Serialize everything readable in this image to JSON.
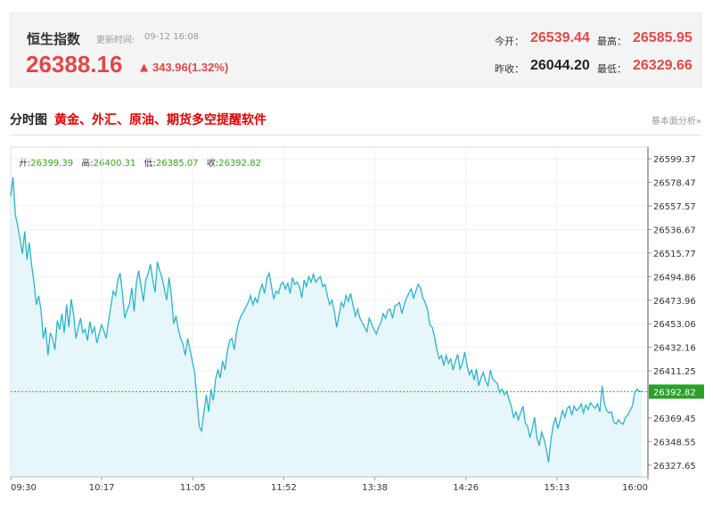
{
  "quote": {
    "name": "恒生指数",
    "update_label": "更新时间:",
    "update_time": "09-12 16:08",
    "price": "26388.16",
    "arrow_icon": "up-arrow",
    "change": "343.96(1.32%)",
    "open_label": "今开：",
    "open": "26539.44",
    "high_label": "最高：",
    "high": "26585.95",
    "prev_close_label": "昨收：",
    "prev_close": "26044.20",
    "low_label": "最低：",
    "low": "26329.66"
  },
  "section": {
    "title": "分时图",
    "link": "黄金、外汇、原油、期货多空提醒软件",
    "right_link": "基本面分析»"
  },
  "ohlc": {
    "open_label": "开:",
    "open": "26399.39",
    "high_label": "高:",
    "high": "26400.31",
    "low_label": "低:",
    "low": "26385.07",
    "close_label": "收:",
    "close": "26392.82"
  },
  "colors": {
    "line": "#2bb3c9",
    "fill": "#e6f6f9",
    "reference_line": "#3aa84a",
    "current_badge": "#2aa02a",
    "up": "#e04848"
  },
  "chart_data": {
    "type": "area",
    "ylim": [
      26317.2,
      26609.8
    ],
    "yticks": [
      "26599.37",
      "26578.47",
      "26557.57",
      "26536.67",
      "26515.77",
      "26494.86",
      "26473.96",
      "26453.06",
      "26432.16",
      "26411.25",
      "26369.45",
      "26348.55",
      "26327.65"
    ],
    "xticks": [
      "09:30",
      "10:17",
      "11:05",
      "11:52",
      "13:38",
      "14:26",
      "15:13",
      "16:00"
    ],
    "current_value": 26392.82,
    "current_label": "26392.82",
    "series": [
      {
        "values": [
          26566,
          26583,
          26550,
          26540,
          26528,
          26515,
          26535,
          26510,
          26525,
          26505,
          26490,
          26470,
          26478,
          26465,
          26440,
          26450,
          26425,
          26445,
          26440,
          26430,
          26456,
          26448,
          26462,
          26445,
          26470,
          26450,
          26475,
          26462,
          26440,
          26450,
          26458,
          26445,
          26448,
          26438,
          26455,
          26445,
          26450,
          26436,
          26444,
          26452,
          26447,
          26440,
          26455,
          26468,
          26482,
          26478,
          26492,
          26498,
          26480,
          26458,
          26465,
          26470,
          26485,
          26464,
          26490,
          26500,
          26486,
          26473,
          26492,
          26497,
          26506,
          26492,
          26481,
          26508,
          26500,
          26494,
          26484,
          26474,
          26494,
          26478,
          26453,
          26460,
          26448,
          26440,
          26435,
          26425,
          26440,
          26430,
          26420,
          26410,
          26385,
          26362,
          26358,
          26375,
          26390,
          26375,
          26395,
          26385,
          26404,
          26412,
          26405,
          26420,
          26412,
          26428,
          26438,
          26440,
          26430,
          26446,
          26455,
          26460,
          26464,
          26468,
          26472,
          26478,
          26470,
          26476,
          26472,
          26482,
          26488,
          26480,
          26493,
          26498,
          26486,
          26475,
          26482,
          26480,
          26488,
          26490,
          26484,
          26489,
          26480,
          26494,
          26488,
          26490,
          26486,
          26476,
          26492,
          26486,
          26495,
          26490,
          26497,
          26490,
          26493,
          26495,
          26486,
          26488,
          26478,
          26470,
          26474,
          26464,
          26450,
          26461,
          26472,
          26468,
          26478,
          26473,
          26480,
          26470,
          26460,
          26466,
          26458,
          26454,
          26450,
          26446,
          26458,
          26453,
          26448,
          26444,
          26450,
          26454,
          26462,
          26458,
          26465,
          26466,
          26458,
          26469,
          26470,
          26472,
          26462,
          26470,
          26476,
          26480,
          26484,
          26476,
          26482,
          26488,
          26485,
          26476,
          26472,
          26466,
          26452,
          26450,
          26442,
          26430,
          26422,
          26425,
          26416,
          26425,
          26418,
          26422,
          26412,
          26420,
          26426,
          26413,
          26418,
          26428,
          26416,
          26408,
          26412,
          26403,
          26413,
          26398,
          26405,
          26410,
          26402,
          26398,
          26412,
          26404,
          26402,
          26400,
          26392,
          26395,
          26390,
          26393,
          26386,
          26380,
          26370,
          26375,
          26368,
          26374,
          26380,
          26365,
          26362,
          26352,
          26360,
          26370,
          26352,
          26345,
          26357,
          26351,
          26342,
          26330,
          26350,
          26363,
          26370,
          26360,
          26368,
          26376,
          26370,
          26378,
          26380,
          26372,
          26380,
          26376,
          26378,
          26382,
          26374,
          26381,
          26377,
          26383,
          26380,
          26378,
          26382,
          26375,
          26398,
          26382,
          26376,
          26374,
          26375,
          26366,
          26364,
          26368,
          26365,
          26364,
          26370,
          26372,
          26376,
          26380,
          26392,
          26395,
          26393,
          26392.82
        ]
      }
    ]
  }
}
